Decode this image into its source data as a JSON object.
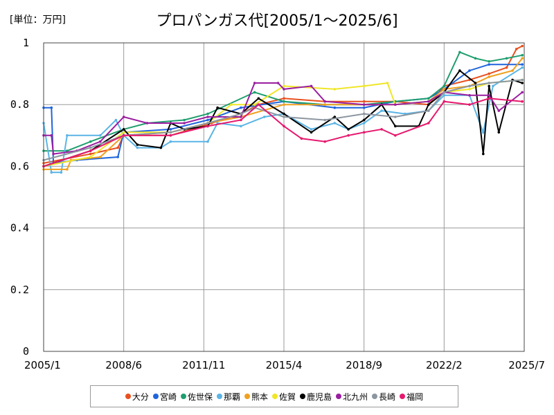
{
  "chart_data": {
    "type": "line",
    "title": "プロパンガス代[2005/1～2025/6]",
    "unit_label": "[単位：万円]",
    "x_range": [
      "2005/1",
      "2025/7"
    ],
    "x_tick_labels": [
      "2005/1",
      "2008/6",
      "2011/11",
      "2015/4",
      "2018/9",
      "2022/2",
      "2025/7"
    ],
    "ylim": [
      0,
      1
    ],
    "y_ticks": [
      0,
      0.2,
      0.4,
      0.6,
      0.8,
      1
    ],
    "y_tick_labels": [
      "0",
      "0.2",
      "0.4",
      "0.6",
      "0.8",
      "1"
    ],
    "grid": true,
    "legend_position": "bottom",
    "series": [
      {
        "name": "大分",
        "color": "#e8501e",
        "points": [
          [
            "2005/1",
            0.61
          ],
          [
            "2007/1",
            0.64
          ],
          [
            "2008/3",
            0.66
          ],
          [
            "2008/6",
            0.7
          ],
          [
            "2010/6",
            0.7
          ],
          [
            "2012/3",
            0.74
          ],
          [
            "2013/6",
            0.77
          ],
          [
            "2014/3",
            0.8
          ],
          [
            "2015/4",
            0.82
          ],
          [
            "2017/1",
            0.81
          ],
          [
            "2018/9",
            0.81
          ],
          [
            "2020/1",
            0.81
          ],
          [
            "2021/6",
            0.8
          ],
          [
            "2022/2",
            0.86
          ],
          [
            "2023/3",
            0.88
          ],
          [
            "2024/1",
            0.9
          ],
          [
            "2024/10",
            0.92
          ],
          [
            "2025/3",
            0.98
          ],
          [
            "2025/6",
            0.99
          ]
        ]
      },
      {
        "name": "宮崎",
        "color": "#1e64dc",
        "points": [
          [
            "2005/1",
            0.79
          ],
          [
            "2005/5",
            0.79
          ],
          [
            "2005/6",
            0.61
          ],
          [
            "2006/6",
            0.62
          ],
          [
            "2008/3",
            0.63
          ],
          [
            "2008/6",
            0.71
          ],
          [
            "2010/6",
            0.72
          ],
          [
            "2012/1",
            0.75
          ],
          [
            "2013/6",
            0.79
          ],
          [
            "2015/4",
            0.81
          ],
          [
            "2017/6",
            0.79
          ],
          [
            "2018/9",
            0.79
          ],
          [
            "2020/1",
            0.81
          ],
          [
            "2021/6",
            0.82
          ],
          [
            "2022/2",
            0.85
          ],
          [
            "2023/3",
            0.91
          ],
          [
            "2024/1",
            0.93
          ],
          [
            "2025/6",
            0.93
          ]
        ]
      },
      {
        "name": "佐世保",
        "color": "#1e9e6e",
        "points": [
          [
            "2005/1",
            0.65
          ],
          [
            "2006/1",
            0.65
          ],
          [
            "2007/1",
            0.68
          ],
          [
            "2008/6",
            0.72
          ],
          [
            "2009/6",
            0.74
          ],
          [
            "2011/1",
            0.75
          ],
          [
            "2012/1",
            0.77
          ],
          [
            "2014/1",
            0.84
          ],
          [
            "2015/4",
            0.81
          ],
          [
            "2017/1",
            0.8
          ],
          [
            "2018/9",
            0.8
          ],
          [
            "2020/1",
            0.81
          ],
          [
            "2021/6",
            0.82
          ],
          [
            "2022/2",
            0.86
          ],
          [
            "2022/10",
            0.97
          ],
          [
            "2023/6",
            0.95
          ],
          [
            "2024/1",
            0.94
          ],
          [
            "2024/10",
            0.95
          ],
          [
            "2025/6",
            0.96
          ]
        ]
      },
      {
        "name": "那覇",
        "color": "#5ab4e6",
        "points": [
          [
            "2005/1",
            0.74
          ],
          [
            "2005/5",
            0.58
          ],
          [
            "2005/10",
            0.58
          ],
          [
            "2006/1",
            0.7
          ],
          [
            "2007/6",
            0.7
          ],
          [
            "2008/2",
            0.75
          ],
          [
            "2008/6",
            0.7
          ],
          [
            "2009/1",
            0.66
          ],
          [
            "2010/1",
            0.66
          ],
          [
            "2010/6",
            0.68
          ],
          [
            "2012/1",
            0.68
          ],
          [
            "2012/6",
            0.74
          ],
          [
            "2013/6",
            0.73
          ],
          [
            "2014/6",
            0.76
          ],
          [
            "2015/4",
            0.77
          ],
          [
            "2016/6",
            0.72
          ],
          [
            "2017/6",
            0.74
          ],
          [
            "2018/1",
            0.72
          ],
          [
            "2018/9",
            0.74
          ],
          [
            "2019/6",
            0.78
          ],
          [
            "2020/6",
            0.77
          ],
          [
            "2021/6",
            0.78
          ],
          [
            "2022/2",
            0.83
          ],
          [
            "2023/3",
            0.83
          ],
          [
            "2023/10",
            0.71
          ],
          [
            "2024/3",
            0.86
          ],
          [
            "2025/6",
            0.92
          ]
        ]
      },
      {
        "name": "熊本",
        "color": "#f0a01e",
        "points": [
          [
            "2005/1",
            0.59
          ],
          [
            "2006/1",
            0.59
          ],
          [
            "2006/3",
            0.62
          ],
          [
            "2007/6",
            0.63
          ],
          [
            "2008/6",
            0.7
          ],
          [
            "2010/6",
            0.71
          ],
          [
            "2012/1",
            0.74
          ],
          [
            "2013/6",
            0.76
          ],
          [
            "2015/4",
            0.8
          ],
          [
            "2017/1",
            0.8
          ],
          [
            "2018/9",
            0.8
          ],
          [
            "2020/1",
            0.8
          ],
          [
            "2021/6",
            0.81
          ],
          [
            "2022/2",
            0.85
          ],
          [
            "2023/3",
            0.86
          ],
          [
            "2024/1",
            0.89
          ],
          [
            "2025/1",
            0.91
          ],
          [
            "2025/6",
            0.95
          ]
        ]
      },
      {
        "name": "佐賀",
        "color": "#f0e628",
        "points": [
          [
            "2005/1",
            0.6
          ],
          [
            "2007/1",
            0.63
          ],
          [
            "2008/6",
            0.71
          ],
          [
            "2010/6",
            0.71
          ],
          [
            "2012/1",
            0.74
          ],
          [
            "2013/1",
            0.8
          ],
          [
            "2014/1",
            0.8
          ],
          [
            "2015/4",
            0.86
          ],
          [
            "2017/6",
            0.85
          ],
          [
            "2018/9",
            0.86
          ],
          [
            "2019/9",
            0.87
          ],
          [
            "2020/1",
            0.8
          ],
          [
            "2021/6",
            0.81
          ],
          [
            "2022/2",
            0.84
          ],
          [
            "2023/3",
            0.85
          ],
          [
            "2024/1",
            0.87
          ],
          [
            "2025/6",
            0.88
          ]
        ]
      },
      {
        "name": "鹿児島",
        "color": "#000000",
        "points": [
          [
            "2005/1",
            0.6
          ],
          [
            "2007/1",
            0.65
          ],
          [
            "2008/6",
            0.72
          ],
          [
            "2009/1",
            0.67
          ],
          [
            "2010/1",
            0.66
          ],
          [
            "2010/6",
            0.74
          ],
          [
            "2011/1",
            0.72
          ],
          [
            "2012/1",
            0.73
          ],
          [
            "2012/6",
            0.79
          ],
          [
            "2013/6",
            0.77
          ],
          [
            "2014/3",
            0.82
          ],
          [
            "2015/4",
            0.77
          ],
          [
            "2016/6",
            0.71
          ],
          [
            "2017/6",
            0.76
          ],
          [
            "2018/1",
            0.72
          ],
          [
            "2018/9",
            0.75
          ],
          [
            "2019/6",
            0.8
          ],
          [
            "2020/1",
            0.73
          ],
          [
            "2021/1",
            0.73
          ],
          [
            "2021/6",
            0.8
          ],
          [
            "2022/2",
            0.84
          ],
          [
            "2022/10",
            0.91
          ],
          [
            "2023/6",
            0.87
          ],
          [
            "2023/10",
            0.64
          ],
          [
            "2024/1",
            0.86
          ],
          [
            "2024/6",
            0.71
          ],
          [
            "2025/1",
            0.88
          ],
          [
            "2025/6",
            0.87
          ]
        ]
      },
      {
        "name": "北九州",
        "color": "#9a1ea0",
        "points": [
          [
            "2005/1",
            0.7
          ],
          [
            "2005/5",
            0.7
          ],
          [
            "2005/6",
            0.64
          ],
          [
            "2006/6",
            0.65
          ],
          [
            "2007/6",
            0.68
          ],
          [
            "2008/6",
            0.76
          ],
          [
            "2009/6",
            0.74
          ],
          [
            "2011/1",
            0.74
          ],
          [
            "2012/1",
            0.76
          ],
          [
            "2013/6",
            0.76
          ],
          [
            "2014/1",
            0.87
          ],
          [
            "2015/1",
            0.87
          ],
          [
            "2015/4",
            0.85
          ],
          [
            "2016/6",
            0.86
          ],
          [
            "2017/1",
            0.81
          ],
          [
            "2018/9",
            0.8
          ],
          [
            "2020/1",
            0.8
          ],
          [
            "2021/6",
            0.81
          ],
          [
            "2022/2",
            0.84
          ],
          [
            "2023/3",
            0.83
          ],
          [
            "2024/1",
            0.83
          ],
          [
            "2024/6",
            0.78
          ],
          [
            "2025/6",
            0.84
          ]
        ]
      },
      {
        "name": "長崎",
        "color": "#8c96a0",
        "points": [
          [
            "2005/1",
            0.62
          ],
          [
            "2007/1",
            0.66
          ],
          [
            "2008/6",
            0.7
          ],
          [
            "2010/6",
            0.71
          ],
          [
            "2012/1",
            0.74
          ],
          [
            "2013/6",
            0.77
          ],
          [
            "2014/1",
            0.79
          ],
          [
            "2015/4",
            0.76
          ],
          [
            "2017/1",
            0.75
          ],
          [
            "2018/9",
            0.77
          ],
          [
            "2020/1",
            0.76
          ],
          [
            "2021/6",
            0.78
          ],
          [
            "2022/2",
            0.84
          ],
          [
            "2023/3",
            0.86
          ],
          [
            "2024/1",
            0.87
          ],
          [
            "2025/6",
            0.88
          ]
        ]
      },
      {
        "name": "福岡",
        "color": "#e6186e",
        "points": [
          [
            "2005/1",
            0.6
          ],
          [
            "2007/1",
            0.65
          ],
          [
            "2008/6",
            0.7
          ],
          [
            "2010/6",
            0.7
          ],
          [
            "2012/1",
            0.73
          ],
          [
            "2013/6",
            0.75
          ],
          [
            "2014/3",
            0.8
          ],
          [
            "2015/4",
            0.73
          ],
          [
            "2016/1",
            0.69
          ],
          [
            "2017/1",
            0.68
          ],
          [
            "2018/1",
            0.7
          ],
          [
            "2018/9",
            0.71
          ],
          [
            "2019/6",
            0.72
          ],
          [
            "2020/1",
            0.7
          ],
          [
            "2021/6",
            0.74
          ],
          [
            "2022/2",
            0.81
          ],
          [
            "2023/3",
            0.8
          ],
          [
            "2024/1",
            0.82
          ],
          [
            "2025/6",
            0.81
          ]
        ]
      }
    ]
  }
}
